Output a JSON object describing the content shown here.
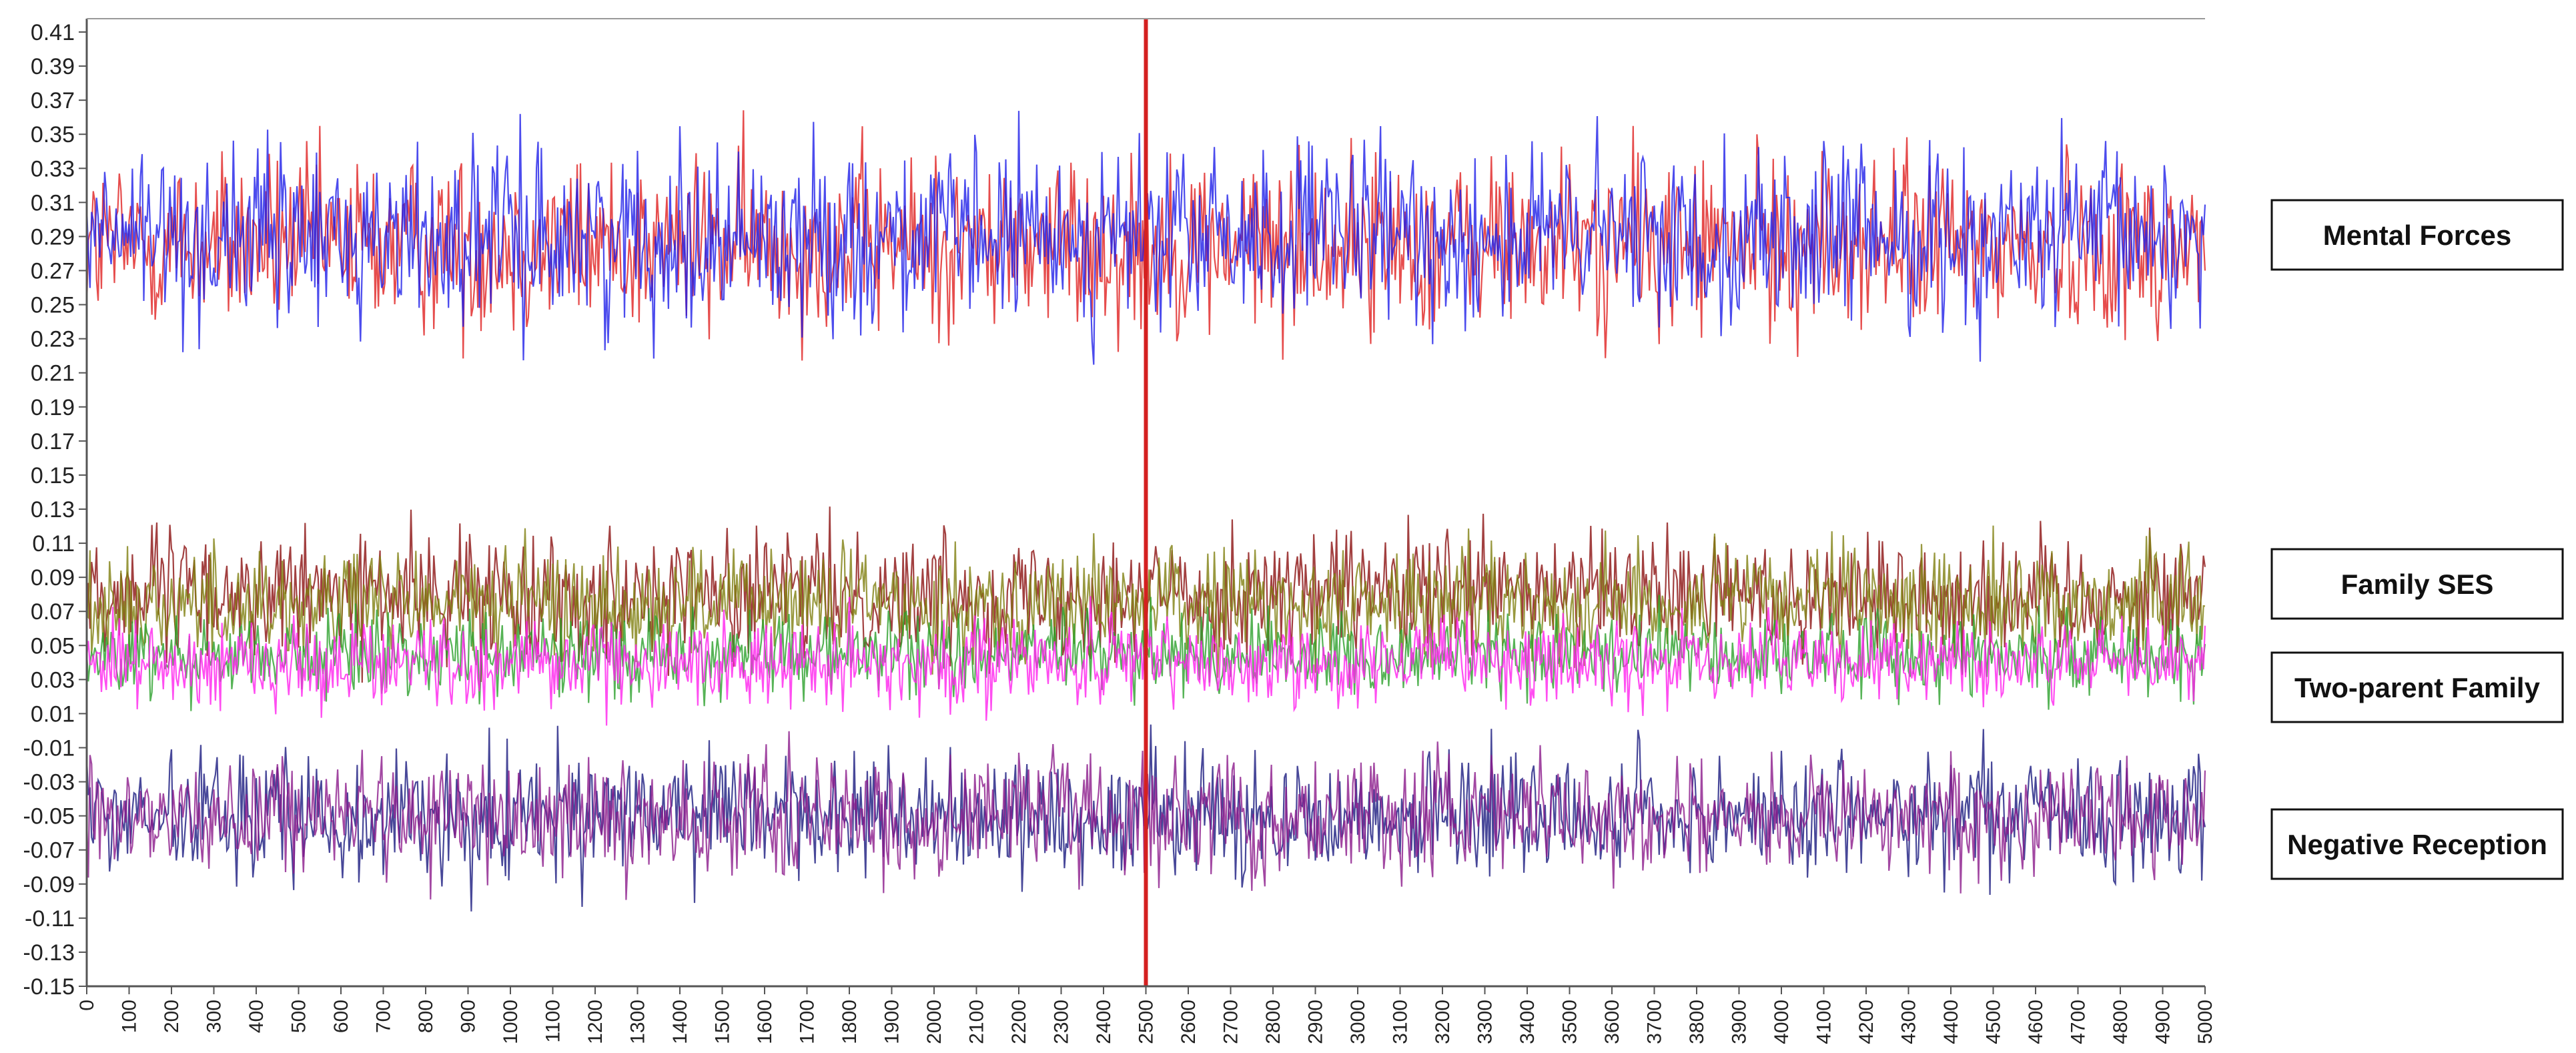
{
  "chart_data": {
    "type": "line",
    "title": "",
    "xlabel": "",
    "ylabel": "",
    "xlim": [
      0,
      5000
    ],
    "ylim": [
      -0.15,
      0.42
    ],
    "y_ticks": [
      "0.41",
      "0.39",
      "0.37",
      "0.35",
      "0.33",
      "0.31",
      "0.29",
      "0.27",
      "0.25",
      "0.23",
      "0.21",
      "0.19",
      "0.17",
      "0.15",
      "0.13",
      "0.11",
      "0.09",
      "0.07",
      "0.05",
      "0.03",
      "0.01",
      "-0.01",
      "-0.03",
      "-0.05",
      "-0.07",
      "-0.09",
      "-0.11",
      "-0.13",
      "-0.15"
    ],
    "x_ticks": [
      "0",
      "100",
      "200",
      "300",
      "400",
      "500",
      "600",
      "700",
      "800",
      "900",
      "1000",
      "1100",
      "1200",
      "1300",
      "1400",
      "1500",
      "1600",
      "1700",
      "1800",
      "1900",
      "2000",
      "2100",
      "2200",
      "2300",
      "2400",
      "2500",
      "2600",
      "2700",
      "2800",
      "2900",
      "3000",
      "3100",
      "3200",
      "3300",
      "3400",
      "3500",
      "3600",
      "3700",
      "3800",
      "3900",
      "4000",
      "4100",
      "4200",
      "4300",
      "4400",
      "4500",
      "4600",
      "4700",
      "4800",
      "4900",
      "5000"
    ],
    "grid": false,
    "reference_line": {
      "x": 2500,
      "color": "#d42020"
    },
    "legend": [
      {
        "label": "Mental Forces",
        "target": 0.29
      },
      {
        "label": "Family SES",
        "target": 0.07
      },
      {
        "label": "Two-parent Family",
        "target": 0.035
      },
      {
        "label": "Negative Reception",
        "target": -0.055
      }
    ],
    "series": [
      {
        "color": "#e02020",
        "mean": 0.285,
        "sd": 0.026
      },
      {
        "color": "#1f1fe8",
        "mean": 0.29,
        "sd": 0.026
      },
      {
        "color": "#8b1010",
        "mean": 0.08,
        "sd": 0.018
      },
      {
        "color": "#808010",
        "mean": 0.075,
        "sd": 0.016
      },
      {
        "color": "#2ca02c",
        "mean": 0.045,
        "sd": 0.012
      },
      {
        "color": "#ff22ee",
        "mean": 0.04,
        "sd": 0.013
      },
      {
        "color": "#1a1a80",
        "mean": -0.05,
        "sd": 0.018
      },
      {
        "color": "#8b1a8b",
        "mean": -0.05,
        "sd": 0.017
      }
    ]
  }
}
